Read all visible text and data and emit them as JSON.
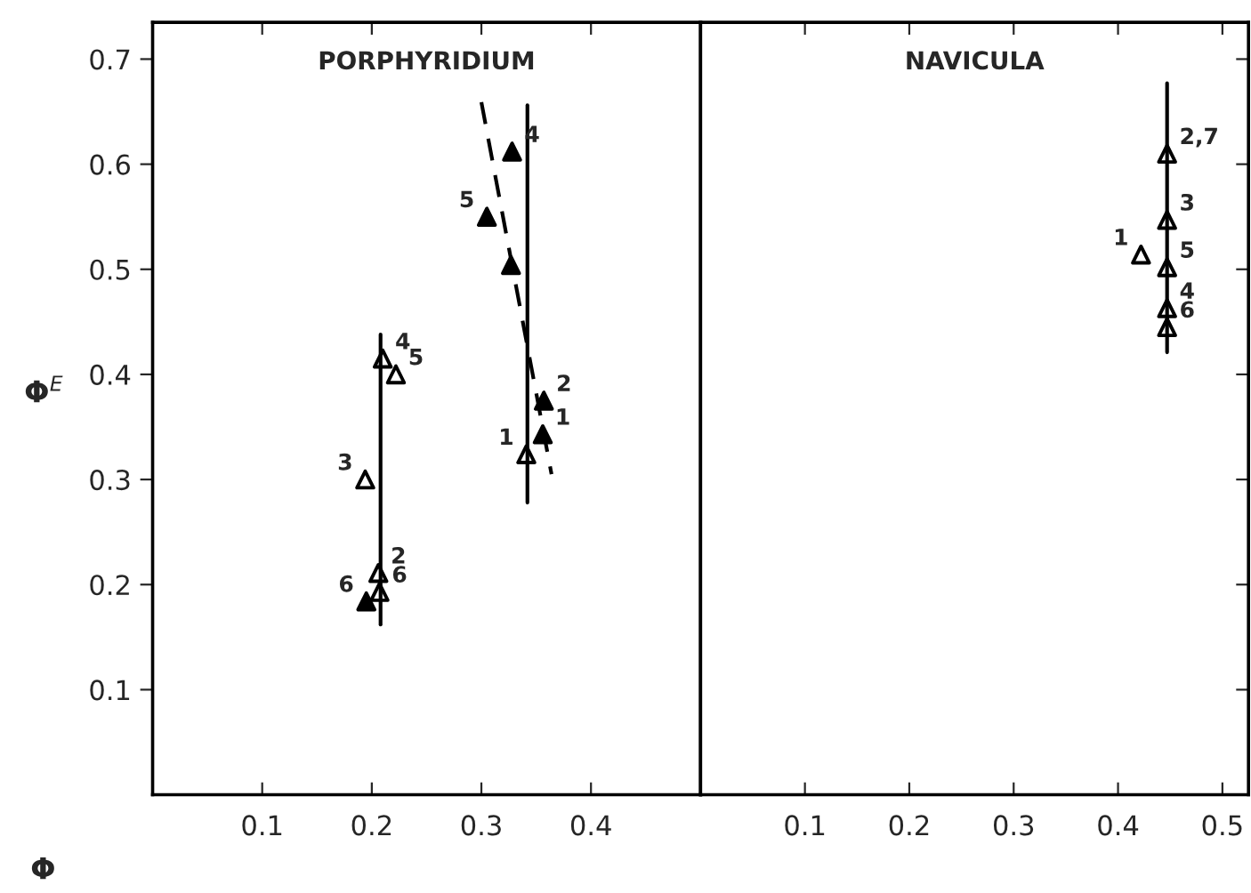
{
  "chart_data": [
    {
      "type": "scatter",
      "title": "PORPHYRIDIUM",
      "ylabel": "Φ$^{E}$",
      "xlabel": "Φ",
      "xlim": [
        0,
        0.5
      ],
      "ylim": [
        0,
        0.735
      ],
      "xticks": [
        0.1,
        0.2,
        0.3,
        0.4
      ],
      "yticks": [
        0.1,
        0.2,
        0.3,
        0.4,
        0.5,
        0.6,
        0.7
      ],
      "grid": false,
      "legend": false,
      "marker": "triangle",
      "series": [
        {
          "color": "#000000",
          "x": [
            0.21,
            0.222,
            0.194,
            0.206,
            0.207,
            0.341
          ],
          "values": [
            0.415,
            0.4,
            0.3,
            0.211,
            0.193,
            0.324
          ]
        },
        {
          "color": "#000000",
          "x": [
            0.195,
            0.328,
            0.305,
            0.327,
            0.357,
            0.356
          ],
          "values": [
            0.184,
            0.612,
            0.55,
            0.504,
            0.375,
            0.343
          ]
        },
        {
          "type": "line",
          "color": "#000000",
          "marker": "none",
          "line_style": "solid",
          "x": [
            0.208,
            0.208
          ],
          "values": [
            0.438,
            0.162
          ]
        },
        {
          "type": "line",
          "color": "#000000",
          "marker": "none",
          "line_style": "solid",
          "x": [
            0.342,
            0.342
          ],
          "values": [
            0.656,
            0.278
          ]
        },
        {
          "type": "line",
          "color": "#000000",
          "marker": "none",
          "line_style": "dashed",
          "x": [
            0.3,
            0.364
          ],
          "values": [
            0.659,
            0.305
          ]
        }
      ],
      "annotations": [
        {
          "text": "4",
          "x": 0.21,
          "y": 0.415
        },
        {
          "text": "5",
          "x": 0.222,
          "y": 0.4
        },
        {
          "text": "3",
          "x": 0.194,
          "y": 0.3
        },
        {
          "text": "2",
          "x": 0.206,
          "y": 0.211
        },
        {
          "text": "6",
          "x": 0.207,
          "y": 0.193
        },
        {
          "text": "1",
          "x": 0.341,
          "y": 0.324
        },
        {
          "text": "6",
          "x": 0.195,
          "y": 0.184
        },
        {
          "text": "4",
          "x": 0.328,
          "y": 0.612
        },
        {
          "text": "5",
          "x": 0.305,
          "y": 0.55
        },
        {
          "text": "2",
          "x": 0.357,
          "y": 0.375
        },
        {
          "text": "1",
          "x": 0.356,
          "y": 0.343
        }
      ]
    },
    {
      "type": "scatter",
      "title": "NAVICULA",
      "xlim": [
        0,
        0.525
      ],
      "ylim": [
        0,
        0.735
      ],
      "xticks": [
        0.1,
        0.2,
        0.3,
        0.4,
        0.5
      ],
      "yticks": [
        0.1,
        0.2,
        0.3,
        0.4,
        0.5,
        0.6,
        0.7
      ],
      "tick_labels": "x",
      "grid": false,
      "legend": false,
      "marker": "triangle",
      "series": [
        {
          "color": "#000000",
          "x": [
            0.447,
            0.447,
            0.422,
            0.447,
            0.447,
            0.447
          ],
          "values": [
            0.61,
            0.547,
            0.514,
            0.502,
            0.463,
            0.445
          ]
        },
        {
          "type": "line",
          "color": "#000000",
          "marker": "none",
          "line_style": "solid",
          "x": [
            0.447,
            0.447
          ],
          "values": [
            0.677,
            0.421
          ]
        }
      ],
      "annotations": [
        {
          "text": "2,7",
          "x": 0.447,
          "y": 0.61
        },
        {
          "text": "3",
          "x": 0.447,
          "y": 0.547
        },
        {
          "text": "1",
          "x": 0.422,
          "y": 0.514
        },
        {
          "text": "5",
          "x": 0.447,
          "y": 0.502
        },
        {
          "text": "4",
          "x": 0.447,
          "y": 0.463
        },
        {
          "text": "6",
          "x": 0.447,
          "y": 0.445
        }
      ]
    }
  ]
}
